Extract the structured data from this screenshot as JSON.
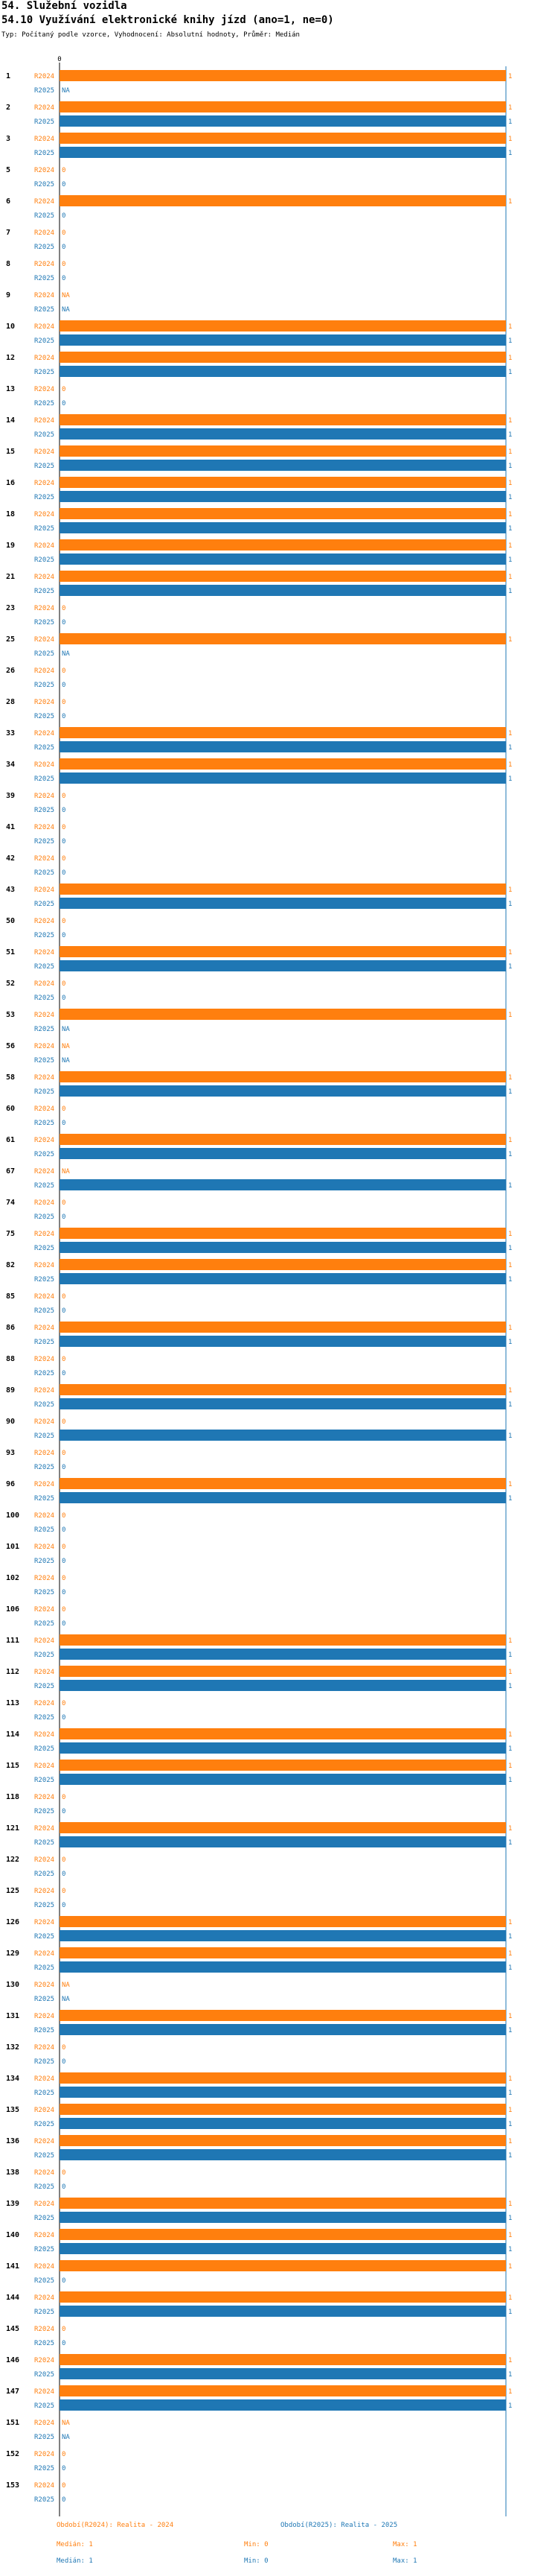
{
  "header": {
    "section": "54. Služební vozidla",
    "question": "54.10 Využívání elektronické knihy jízd (ano=1, ne=0)",
    "type_line": "Typ: Počítaný podle vzorce, Vyhodnocení: Absolutní hodnoty, Průměr: Medián"
  },
  "colors": {
    "r2024": "#ff7f0e",
    "r2025": "#1f77b4",
    "axis": "#1f77b4",
    "label24": "#ff7f0e",
    "label25": "#1f77b4"
  },
  "chart_data": {
    "type": "bar",
    "orientation": "horizontal",
    "x_ticks": [
      "0"
    ],
    "xlim": [
      0,
      1
    ],
    "series_labels": [
      "R2024",
      "R2025"
    ],
    "groups": [
      {
        "id": "1",
        "r2024": 1,
        "r2025": "NA"
      },
      {
        "id": "2",
        "r2024": 1,
        "r2025": 1
      },
      {
        "id": "3",
        "r2024": 1,
        "r2025": 1
      },
      {
        "id": "5",
        "r2024": 0,
        "r2025": 0
      },
      {
        "id": "6",
        "r2024": 1,
        "r2025": 0
      },
      {
        "id": "7",
        "r2024": 0,
        "r2025": 0
      },
      {
        "id": "8",
        "r2024": 0,
        "r2025": 0
      },
      {
        "id": "9",
        "r2024": "NA",
        "r2025": "NA"
      },
      {
        "id": "10",
        "r2024": 1,
        "r2025": 1
      },
      {
        "id": "12",
        "r2024": 1,
        "r2025": 1
      },
      {
        "id": "13",
        "r2024": 0,
        "r2025": 0
      },
      {
        "id": "14",
        "r2024": 1,
        "r2025": 1
      },
      {
        "id": "15",
        "r2024": 1,
        "r2025": 1
      },
      {
        "id": "16",
        "r2024": 1,
        "r2025": 1
      },
      {
        "id": "18",
        "r2024": 1,
        "r2025": 1
      },
      {
        "id": "19",
        "r2024": 1,
        "r2025": 1
      },
      {
        "id": "21",
        "r2024": 1,
        "r2025": 1
      },
      {
        "id": "23",
        "r2024": 0,
        "r2025": 0
      },
      {
        "id": "25",
        "r2024": 1,
        "r2025": "NA"
      },
      {
        "id": "26",
        "r2024": 0,
        "r2025": 0
      },
      {
        "id": "28",
        "r2024": 0,
        "r2025": 0
      },
      {
        "id": "33",
        "r2024": 1,
        "r2025": 1
      },
      {
        "id": "34",
        "r2024": 1,
        "r2025": 1
      },
      {
        "id": "39",
        "r2024": 0,
        "r2025": 0
      },
      {
        "id": "41",
        "r2024": 0,
        "r2025": 0
      },
      {
        "id": "42",
        "r2024": 0,
        "r2025": 0
      },
      {
        "id": "43",
        "r2024": 1,
        "r2025": 1
      },
      {
        "id": "50",
        "r2024": 0,
        "r2025": 0
      },
      {
        "id": "51",
        "r2024": 1,
        "r2025": 1
      },
      {
        "id": "52",
        "r2024": 0,
        "r2025": 0
      },
      {
        "id": "53",
        "r2024": 1,
        "r2025": "NA"
      },
      {
        "id": "56",
        "r2024": "NA",
        "r2025": "NA"
      },
      {
        "id": "58",
        "r2024": 1,
        "r2025": 1
      },
      {
        "id": "60",
        "r2024": 0,
        "r2025": 0
      },
      {
        "id": "61",
        "r2024": 1,
        "r2025": 1
      },
      {
        "id": "67",
        "r2024": "NA",
        "r2025": 1
      },
      {
        "id": "74",
        "r2024": 0,
        "r2025": 0
      },
      {
        "id": "75",
        "r2024": 1,
        "r2025": 1
      },
      {
        "id": "82",
        "r2024": 1,
        "r2025": 1
      },
      {
        "id": "85",
        "r2024": 0,
        "r2025": 0
      },
      {
        "id": "86",
        "r2024": 1,
        "r2025": 1
      },
      {
        "id": "88",
        "r2024": 0,
        "r2025": 0
      },
      {
        "id": "89",
        "r2024": 1,
        "r2025": 1
      },
      {
        "id": "90",
        "r2024": 0,
        "r2025": 1
      },
      {
        "id": "93",
        "r2024": 0,
        "r2025": 0
      },
      {
        "id": "96",
        "r2024": 1,
        "r2025": 1
      },
      {
        "id": "100",
        "r2024": 0,
        "r2025": 0
      },
      {
        "id": "101",
        "r2024": 0,
        "r2025": 0
      },
      {
        "id": "102",
        "r2024": 0,
        "r2025": 0
      },
      {
        "id": "106",
        "r2024": 0,
        "r2025": 0
      },
      {
        "id": "111",
        "r2024": 1,
        "r2025": 1
      },
      {
        "id": "112",
        "r2024": 1,
        "r2025": 1
      },
      {
        "id": "113",
        "r2024": 0,
        "r2025": 0
      },
      {
        "id": "114",
        "r2024": 1,
        "r2025": 1
      },
      {
        "id": "115",
        "r2024": 1,
        "r2025": 1
      },
      {
        "id": "118",
        "r2024": 0,
        "r2025": 0
      },
      {
        "id": "121",
        "r2024": 1,
        "r2025": 1
      },
      {
        "id": "122",
        "r2024": 0,
        "r2025": 0
      },
      {
        "id": "125",
        "r2024": 0,
        "r2025": 0
      },
      {
        "id": "126",
        "r2024": 1,
        "r2025": 1
      },
      {
        "id": "129",
        "r2024": 1,
        "r2025": 1
      },
      {
        "id": "130",
        "r2024": "NA",
        "r2025": "NA"
      },
      {
        "id": "131",
        "r2024": 1,
        "r2025": 1
      },
      {
        "id": "132",
        "r2024": 0,
        "r2025": 0
      },
      {
        "id": "134",
        "r2024": 1,
        "r2025": 1
      },
      {
        "id": "135",
        "r2024": 1,
        "r2025": 1
      },
      {
        "id": "136",
        "r2024": 1,
        "r2025": 1
      },
      {
        "id": "138",
        "r2024": 0,
        "r2025": 0
      },
      {
        "id": "139",
        "r2024": 1,
        "r2025": 1
      },
      {
        "id": "140",
        "r2024": 1,
        "r2025": 1
      },
      {
        "id": "141",
        "r2024": 1,
        "r2025": 0
      },
      {
        "id": "144",
        "r2024": 1,
        "r2025": 1
      },
      {
        "id": "145",
        "r2024": 0,
        "r2025": 0
      },
      {
        "id": "146",
        "r2024": 1,
        "r2025": 1
      },
      {
        "id": "147",
        "r2024": 1,
        "r2025": 1
      },
      {
        "id": "151",
        "r2024": "NA",
        "r2025": "NA"
      },
      {
        "id": "152",
        "r2024": 0,
        "r2025": 0
      },
      {
        "id": "153",
        "r2024": 0,
        "r2025": 0
      }
    ]
  },
  "footer": {
    "legend_2024": "Období(R2024): Realita - 2024",
    "legend_2025": "Období(R2025): Realita - 2025",
    "stats_2024": {
      "median": "Medián: 1",
      "min": "Min: 0",
      "max": "Max: 1"
    },
    "stats_2025": {
      "median": "Medián: 1",
      "min": "Min: 0",
      "max": "Max: 1"
    }
  }
}
